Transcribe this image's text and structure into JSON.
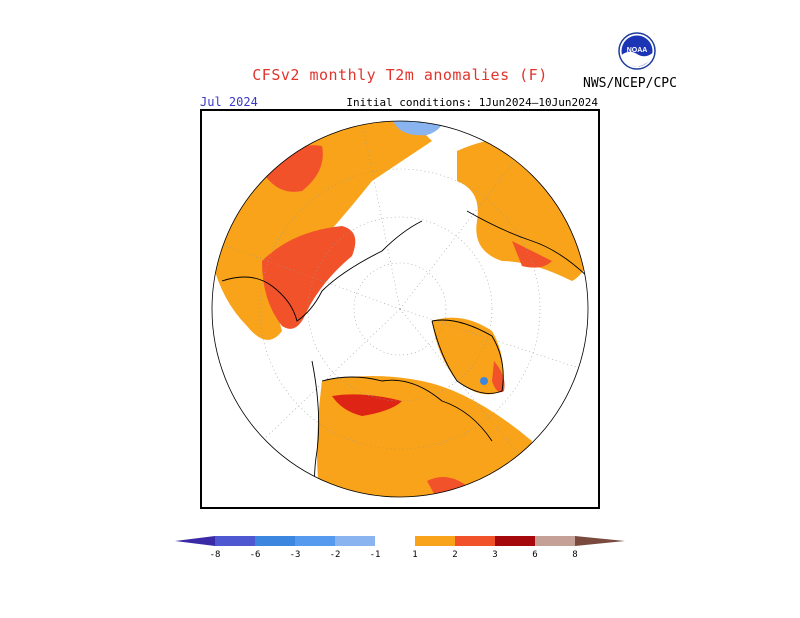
{
  "header": {
    "title": "CFSv2 monthly T2m anomalies (F)",
    "month": "Jul 2024",
    "initial_conditions": "Initial conditions: 1Jun2024–10Jun2024",
    "agency": "NWS/NCEP/CPC",
    "logo_text": "NOAA"
  },
  "colors": {
    "title": "#e0342c",
    "month": "#3a3ac8",
    "pos1": "#f8a31a",
    "pos2": "#f2522a",
    "pos3": "#dd2415",
    "pos4": "#a5090b",
    "pos6": "#c4a096",
    "pos8": "#7a4a3e",
    "neg1": "#8ab4f0",
    "neg2": "#569af0",
    "neg3": "#3c86e0",
    "neg6": "#4e58d0",
    "neg8": "#3a2aa8"
  },
  "legend": {
    "ticks": [
      "-8",
      "-6",
      "-3",
      "-2",
      "-1",
      "1",
      "2",
      "3",
      "6",
      "8"
    ]
  }
}
